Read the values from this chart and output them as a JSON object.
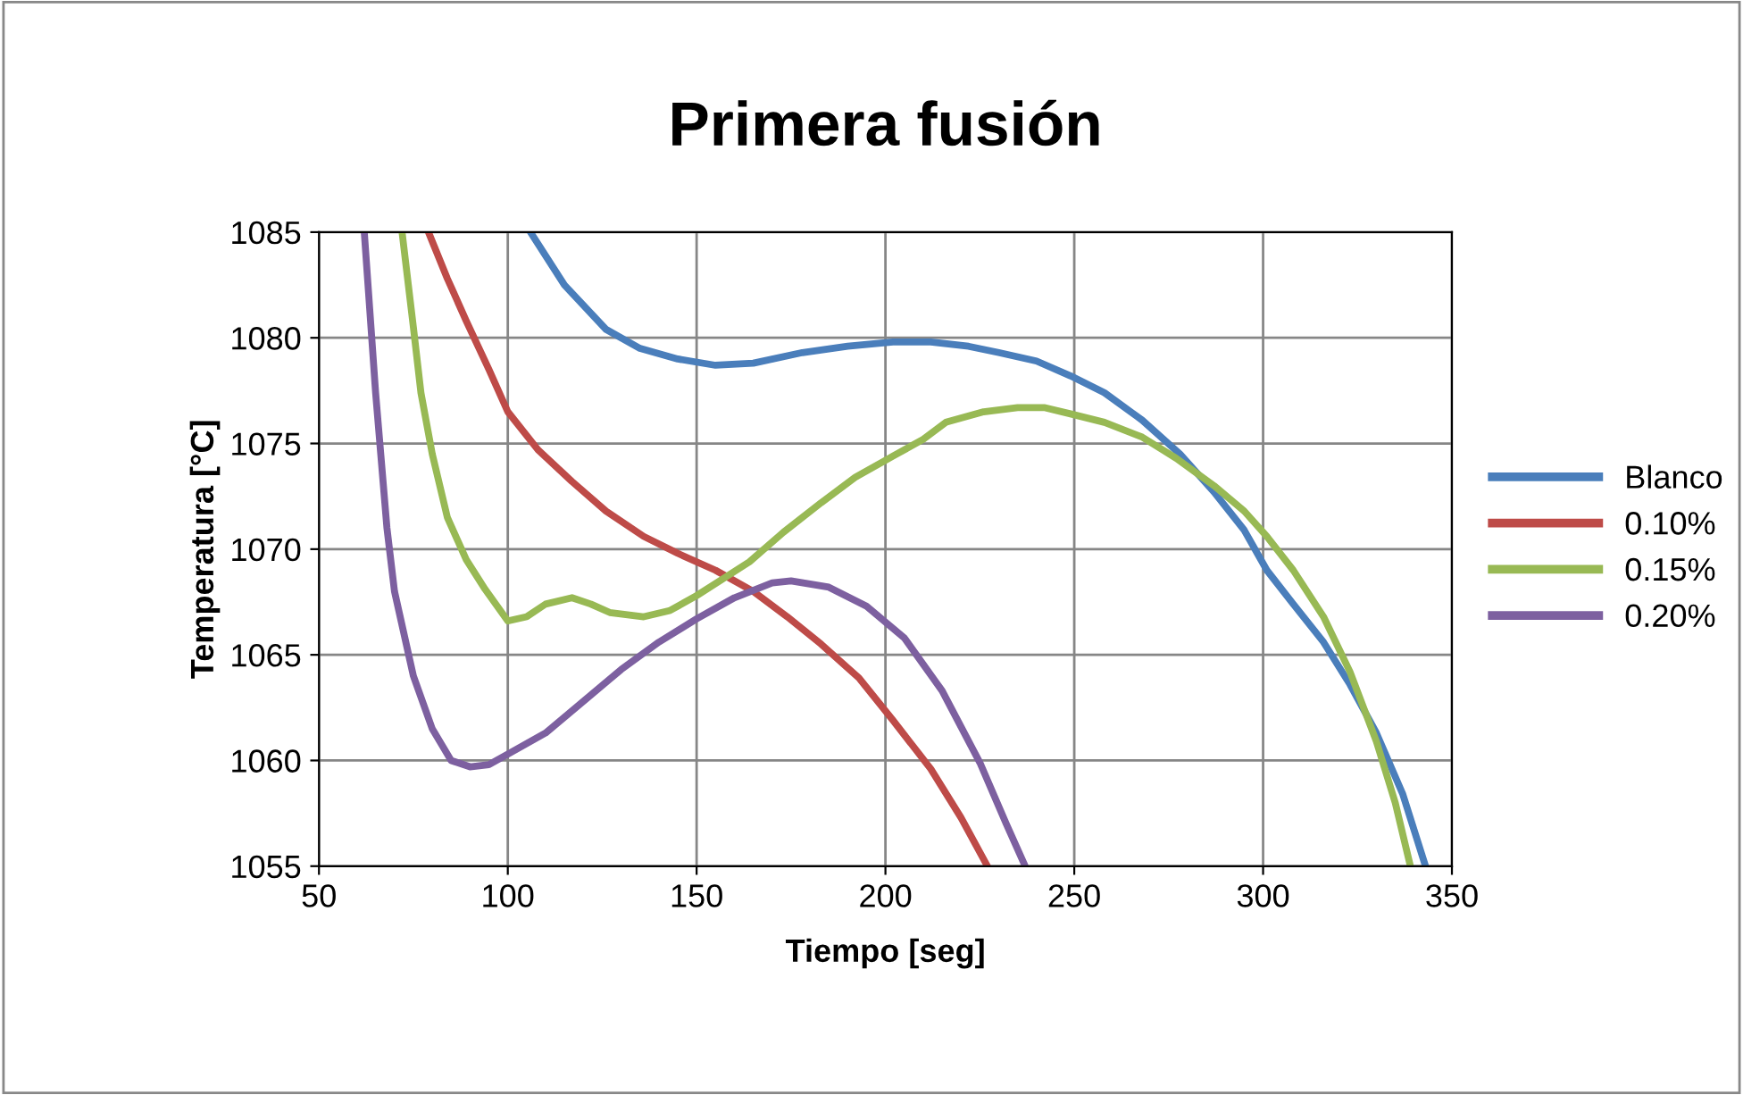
{
  "chart_data": {
    "type": "line",
    "title": "Primera fusión",
    "xlabel": "Tiempo [seg]",
    "ylabel": "Temperatura [°C]",
    "xlim": [
      50,
      350
    ],
    "xticks": [
      50,
      100,
      150,
      200,
      250,
      300,
      350
    ],
    "ylim": [
      1055,
      1085
    ],
    "yticks": [
      1055,
      1060,
      1065,
      1070,
      1075,
      1080,
      1085
    ],
    "grid": true,
    "legend": "right",
    "marker": "none",
    "line_style": "solid",
    "series": [
      {
        "name": "Blanco",
        "color": "#4a7ebb",
        "x": [
          106,
          115,
          126,
          135,
          145,
          155,
          165,
          178,
          190,
          202,
          212,
          222,
          230,
          240,
          249,
          258,
          268,
          278,
          287,
          295,
          301,
          308,
          316,
          323,
          330,
          337,
          343
        ],
        "values": [
          1085,
          1082.5,
          1080.4,
          1079.5,
          1079,
          1078.7,
          1078.8,
          1079.3,
          1079.6,
          1079.8,
          1079.8,
          1079.6,
          1079.3,
          1078.9,
          1078.2,
          1077.4,
          1076.1,
          1074.5,
          1072.7,
          1070.9,
          1069,
          1067.4,
          1065.6,
          1063.6,
          1061.3,
          1058.4,
          1055
        ]
      },
      {
        "name": "0.10%",
        "color": "#be4b48",
        "x": [
          79,
          84,
          89,
          95,
          100,
          108,
          117,
          126,
          136,
          145,
          155,
          165,
          174,
          183,
          193,
          202,
          212,
          220,
          227
        ],
        "values": [
          1085,
          1082.8,
          1080.8,
          1078.5,
          1076.5,
          1074.7,
          1073.2,
          1071.8,
          1070.6,
          1069.8,
          1069,
          1068,
          1066.8,
          1065.5,
          1063.9,
          1061.9,
          1059.6,
          1057.3,
          1055
        ]
      },
      {
        "name": "0.15%",
        "color": "#98b954",
        "x": [
          72,
          75,
          77,
          80,
          84,
          89,
          94,
          100,
          105,
          110,
          117,
          122,
          127,
          136,
          143,
          150,
          157,
          164,
          173,
          183,
          192,
          202,
          210,
          216,
          226,
          235,
          242,
          249,
          258,
          268,
          277,
          287,
          295,
          301,
          308,
          316,
          323,
          330,
          335,
          339
        ],
        "values": [
          1085,
          1080.5,
          1077.4,
          1074.5,
          1071.5,
          1069.5,
          1068.1,
          1066.6,
          1066.8,
          1067.4,
          1067.7,
          1067.4,
          1067,
          1066.8,
          1067.1,
          1067.8,
          1068.6,
          1069.4,
          1070.8,
          1072.2,
          1073.4,
          1074.4,
          1075.2,
          1076,
          1076.5,
          1076.7,
          1076.7,
          1076.4,
          1076,
          1075.3,
          1074.3,
          1073,
          1071.8,
          1070.6,
          1069,
          1066.8,
          1064.2,
          1060.9,
          1058,
          1055
        ]
      },
      {
        "name": "0.20%",
        "color": "#7d60a0",
        "x": [
          62,
          65,
          68,
          70,
          75,
          80,
          85,
          90,
          95,
          100,
          110,
          120,
          130,
          140,
          150,
          160,
          170,
          175,
          185,
          195,
          205,
          215,
          225,
          232,
          237
        ],
        "values": [
          1085,
          1077.4,
          1071,
          1068,
          1064,
          1061.5,
          1060,
          1059.7,
          1059.8,
          1060.3,
          1061.3,
          1062.8,
          1064.3,
          1065.6,
          1066.7,
          1067.7,
          1068.4,
          1068.5,
          1068.2,
          1067.3,
          1065.8,
          1063.3,
          1059.9,
          1057,
          1055
        ]
      }
    ]
  }
}
